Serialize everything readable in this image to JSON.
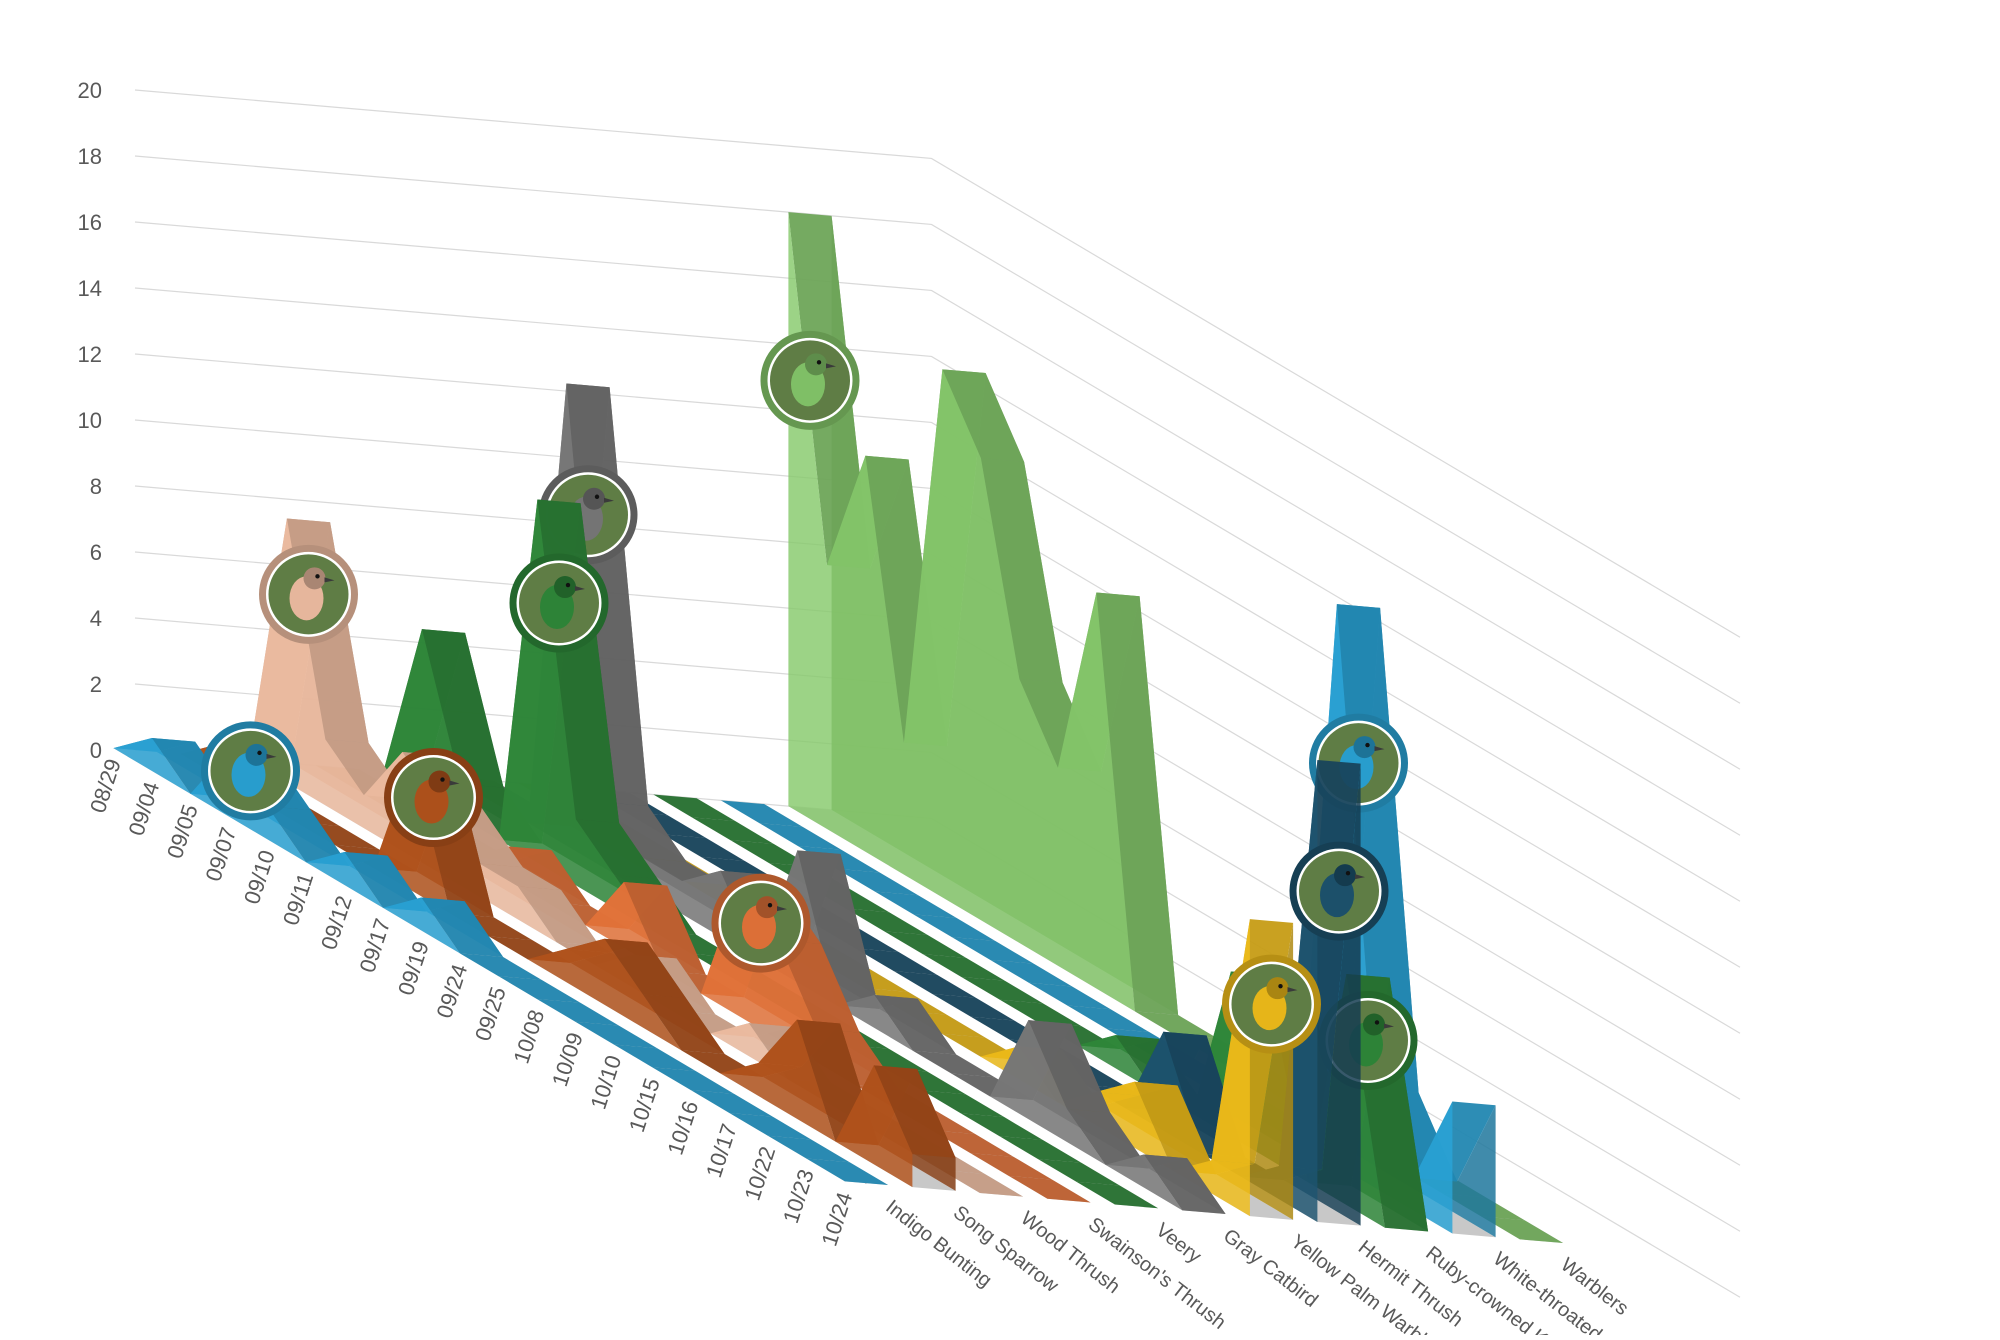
{
  "chart_data": {
    "type": "area",
    "projection": "3d",
    "title": "",
    "xlabel": "",
    "ylabel": "",
    "ylim": [
      0,
      20
    ],
    "y_ticks": [
      "0",
      "2",
      "4",
      "6",
      "8",
      "10",
      "12",
      "14",
      "16",
      "18",
      "20"
    ],
    "gridlines": true,
    "legend": "none",
    "categories": [
      "08/29",
      "09/04",
      "09/05",
      "09/07",
      "09/10",
      "09/11",
      "09/12",
      "09/17",
      "09/19",
      "09/24",
      "09/25",
      "10/08",
      "10/09",
      "10/10",
      "10/15",
      "10/16",
      "10/17",
      "10/22",
      "10/23",
      "10/24"
    ],
    "series": [
      {
        "name": "Indigo Bunting",
        "color": "#2aa5d8",
        "photo_icon": "indigo-bunting-photo",
        "values": [
          0,
          1,
          0,
          2,
          1,
          0,
          1,
          0,
          1,
          0,
          0,
          0,
          0,
          0,
          0,
          0,
          0,
          0,
          0,
          0
        ]
      },
      {
        "name": "Song Sparrow",
        "color": "#b5541c",
        "photo_icon": "song-sparrow-photo",
        "values": [
          0,
          1,
          0,
          0,
          0,
          0,
          4,
          0,
          0,
          0,
          1,
          2,
          1,
          0,
          0,
          1,
          3,
          0,
          3,
          1
        ]
      },
      {
        "name": "Wood Thrush",
        "color": "#f2c0a4",
        "photo_icon": "wood-thrush-photo",
        "values": [
          0,
          8,
          2,
          1,
          3,
          2,
          1,
          1,
          0,
          0,
          1,
          0,
          0,
          1,
          0,
          0,
          0,
          0,
          0,
          0
        ]
      },
      {
        "name": "Swainson's Thrush",
        "color": "#e8753a",
        "photo_icon": "swainsons-thrush-photo",
        "values": [
          0,
          0,
          0,
          0,
          0,
          1,
          0,
          0,
          2,
          0,
          0,
          4,
          3,
          1,
          0,
          0,
          0,
          0,
          0,
          0
        ]
      },
      {
        "name": "Veery",
        "color": "#2f8a3a",
        "photo_icon": "veery-photo",
        "values": [
          0,
          5,
          1,
          0,
          11,
          2,
          1,
          0,
          0,
          0,
          0,
          0,
          0,
          0,
          0,
          0,
          0,
          0,
          0,
          0
        ]
      },
      {
        "name": "Gray Catbird",
        "color": "#7a7a7a",
        "photo_icon": "gray-catbird-photo",
        "values": [
          0,
          0,
          0,
          14,
          2,
          1,
          1,
          2,
          0,
          4,
          0,
          1,
          0,
          0,
          0,
          3,
          1,
          0,
          1,
          0
        ]
      },
      {
        "name": "Yellow Palm Warbler",
        "color": "#f2be1a",
        "photo_icon": "yellow-palm-warbler-photo",
        "values": [
          0,
          0,
          0,
          0,
          0,
          0,
          0,
          0,
          0,
          0,
          0,
          0,
          0,
          1,
          0,
          1,
          2,
          0,
          1,
          9
        ]
      },
      {
        "name": "Hermit Thrush",
        "color": "#1d5470",
        "photo_icon": "hermit-thrush-photo",
        "values": [
          0,
          0,
          0,
          0,
          0,
          0,
          0,
          0,
          0,
          0,
          0,
          0,
          0,
          0,
          0,
          3,
          0,
          0,
          1,
          14
        ]
      },
      {
        "name": "Ruby-crowned Kinglet",
        "color": "#2f8a3a",
        "photo_icon": "ruby-crowned-kinglet-photo",
        "values": [
          0,
          0,
          0,
          0,
          0,
          0,
          0,
          0,
          0,
          0,
          0,
          0,
          1,
          0,
          0,
          5,
          5,
          0,
          7,
          0
        ]
      },
      {
        "name": "White-throated Sparrow",
        "color": "#2aa5d8",
        "photo_icon": "white-throated-sparrow-photo",
        "values": [
          0,
          0,
          0,
          0,
          0,
          0,
          0,
          0,
          0,
          0,
          0,
          0,
          0,
          0,
          0,
          0,
          17,
          3,
          1,
          4
        ]
      },
      {
        "name": "Warblers",
        "color": "#86c96b",
        "photo_icon": "canada-warbler-photo",
        "values": [
          18,
          8,
          12,
          4,
          16,
          14,
          8,
          6,
          12,
          0,
          0,
          0,
          0,
          0,
          0,
          0,
          0,
          0,
          0,
          0
        ]
      }
    ]
  }
}
